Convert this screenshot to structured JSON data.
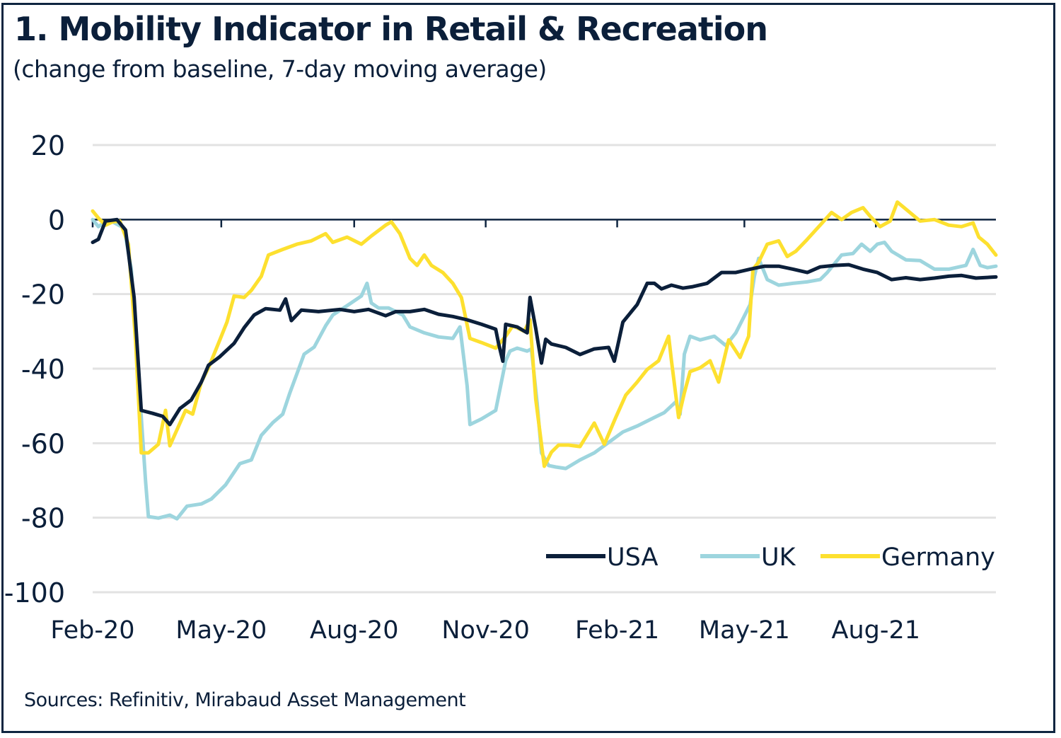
{
  "chart_data": {
    "type": "line",
    "title": "1. Mobility Indicator in Retail & Recreation",
    "subtitle": "(change from baseline, 7-day moving average)",
    "source": "Sources: Refinitiv, Mirabaud Asset Management",
    "xlabel": "",
    "ylabel": "",
    "x_unit": "days since 2020-02-15",
    "x_range_days": [
      0,
      632
    ],
    "ylim": [
      -100,
      20
    ],
    "yticks": [
      20,
      0,
      -20,
      -40,
      -60,
      -80,
      -100
    ],
    "ytick_labels": [
      "20",
      "0",
      "-20",
      "-40",
      "-60",
      "-80",
      "-100"
    ],
    "xticks": [
      {
        "label": "Feb-20",
        "day": 0
      },
      {
        "label": "May-20",
        "day": 90
      },
      {
        "label": "Aug-20",
        "day": 183
      },
      {
        "label": "Nov-20",
        "day": 275
      },
      {
        "label": "Feb-21",
        "day": 367
      },
      {
        "label": "May-21",
        "day": 456
      },
      {
        "label": "Aug-21",
        "day": 548
      }
    ],
    "grid": true,
    "legend_position": "bottom-right",
    "series": [
      {
        "name": "USA",
        "color": "#0b1f3a",
        "points": [
          [
            0,
            -6.1
          ],
          [
            4,
            -5.3
          ],
          [
            9,
            -0.4
          ],
          [
            17,
            0
          ],
          [
            23,
            -2.8
          ],
          [
            29,
            -20.9
          ],
          [
            34,
            -51.2
          ],
          [
            42,
            -52
          ],
          [
            49,
            -52.8
          ],
          [
            54,
            -55
          ],
          [
            61,
            -50.7
          ],
          [
            69,
            -48.4
          ],
          [
            76,
            -43.6
          ],
          [
            81,
            -39.1
          ],
          [
            89,
            -36.8
          ],
          [
            99,
            -33.2
          ],
          [
            106,
            -29
          ],
          [
            113,
            -25.6
          ],
          [
            121,
            -23.9
          ],
          [
            131,
            -24.3
          ],
          [
            135,
            -21.3
          ],
          [
            139,
            -27.1
          ],
          [
            146,
            -24.3
          ],
          [
            158,
            -24.7
          ],
          [
            173,
            -24.1
          ],
          [
            183,
            -24.7
          ],
          [
            193,
            -24.1
          ],
          [
            205,
            -25.8
          ],
          [
            212,
            -24.7
          ],
          [
            222,
            -24.7
          ],
          [
            232,
            -24.1
          ],
          [
            242,
            -25.4
          ],
          [
            252,
            -26
          ],
          [
            262,
            -26.9
          ],
          [
            272,
            -28.1
          ],
          [
            282,
            -29.4
          ],
          [
            284,
            -33.2
          ],
          [
            287,
            -38
          ],
          [
            289,
            -28.1
          ],
          [
            297,
            -28.8
          ],
          [
            304,
            -30.4
          ],
          [
            306,
            -20.9
          ],
          [
            310,
            -29.2
          ],
          [
            314,
            -38.5
          ],
          [
            317,
            -32.1
          ],
          [
            321,
            -33.4
          ],
          [
            331,
            -34.3
          ],
          [
            341,
            -36.2
          ],
          [
            351,
            -34.7
          ],
          [
            361,
            -34.3
          ],
          [
            365,
            -38
          ],
          [
            371,
            -27.5
          ],
          [
            381,
            -22.8
          ],
          [
            388,
            -17.1
          ],
          [
            393,
            -17.1
          ],
          [
            398,
            -18.6
          ],
          [
            405,
            -17.6
          ],
          [
            413,
            -18.4
          ],
          [
            420,
            -18
          ],
          [
            430,
            -17.1
          ],
          [
            440,
            -14.2
          ],
          [
            450,
            -14.2
          ],
          [
            460,
            -13.3
          ],
          [
            470,
            -12.5
          ],
          [
            480,
            -12.5
          ],
          [
            490,
            -13.3
          ],
          [
            500,
            -14.2
          ],
          [
            509,
            -12.7
          ],
          [
            519,
            -12.3
          ],
          [
            529,
            -12.1
          ],
          [
            539,
            -13.3
          ],
          [
            549,
            -14.2
          ],
          [
            559,
            -16.1
          ],
          [
            569,
            -15.6
          ],
          [
            579,
            -16.1
          ],
          [
            589,
            -15.7
          ],
          [
            599,
            -15.2
          ],
          [
            608,
            -15
          ],
          [
            618,
            -15.7
          ],
          [
            632,
            -15.4
          ]
        ]
      },
      {
        "name": "UK",
        "color": "#9dd5de",
        "points": [
          [
            0,
            0
          ],
          [
            4,
            -1.9
          ],
          [
            9,
            -0.6
          ],
          [
            14,
            -0.6
          ],
          [
            22,
            -2.3
          ],
          [
            27,
            -13.3
          ],
          [
            32,
            -41.7
          ],
          [
            37,
            -70.2
          ],
          [
            39,
            -79.7
          ],
          [
            46,
            -80.1
          ],
          [
            54,
            -79.3
          ],
          [
            59,
            -80.3
          ],
          [
            66,
            -76.9
          ],
          [
            76,
            -76.3
          ],
          [
            83,
            -75
          ],
          [
            93,
            -71.2
          ],
          [
            103,
            -65.5
          ],
          [
            111,
            -64.5
          ],
          [
            118,
            -57.9
          ],
          [
            126,
            -54.5
          ],
          [
            133,
            -52.2
          ],
          [
            138,
            -46.5
          ],
          [
            148,
            -36.1
          ],
          [
            155,
            -34.2
          ],
          [
            163,
            -28.5
          ],
          [
            168,
            -25.6
          ],
          [
            178,
            -23.1
          ],
          [
            188,
            -20.5
          ],
          [
            192,
            -17.1
          ],
          [
            195,
            -22.4
          ],
          [
            200,
            -23.7
          ],
          [
            207,
            -23.7
          ],
          [
            217,
            -25.6
          ],
          [
            222,
            -28.8
          ],
          [
            232,
            -30.4
          ],
          [
            242,
            -31.5
          ],
          [
            252,
            -31.9
          ],
          [
            257,
            -28.8
          ],
          [
            262,
            -44.6
          ],
          [
            264,
            -55
          ],
          [
            272,
            -53.5
          ],
          [
            282,
            -51.2
          ],
          [
            289,
            -37.9
          ],
          [
            292,
            -35.3
          ],
          [
            297,
            -34.5
          ],
          [
            304,
            -35.3
          ],
          [
            307,
            -34.7
          ],
          [
            311,
            -49.3
          ],
          [
            314,
            -62.6
          ],
          [
            319,
            -66
          ],
          [
            324,
            -66.4
          ],
          [
            331,
            -66.8
          ],
          [
            341,
            -64.5
          ],
          [
            351,
            -62.6
          ],
          [
            361,
            -59.8
          ],
          [
            371,
            -57
          ],
          [
            381,
            -55.4
          ],
          [
            393,
            -53.1
          ],
          [
            400,
            -51.8
          ],
          [
            408,
            -48.9
          ],
          [
            411,
            -52.2
          ],
          [
            414,
            -36.1
          ],
          [
            418,
            -31.3
          ],
          [
            425,
            -32.3
          ],
          [
            435,
            -31.3
          ],
          [
            443,
            -33.8
          ],
          [
            450,
            -30.4
          ],
          [
            460,
            -22.8
          ],
          [
            463,
            -15.2
          ],
          [
            466,
            -10.4
          ],
          [
            472,
            -16.1
          ],
          [
            480,
            -17.6
          ],
          [
            490,
            -17.1
          ],
          [
            500,
            -16.7
          ],
          [
            509,
            -16.1
          ],
          [
            514,
            -14.2
          ],
          [
            524,
            -9.5
          ],
          [
            532,
            -9.1
          ],
          [
            538,
            -6.6
          ],
          [
            544,
            -8.5
          ],
          [
            549,
            -6.6
          ],
          [
            554,
            -6.1
          ],
          [
            559,
            -8.5
          ],
          [
            569,
            -10.8
          ],
          [
            579,
            -11
          ],
          [
            589,
            -13.3
          ],
          [
            599,
            -13.3
          ],
          [
            611,
            -12.3
          ],
          [
            616,
            -8
          ],
          [
            621,
            -12.3
          ],
          [
            626,
            -12.9
          ],
          [
            632,
            -12.5
          ]
        ]
      },
      {
        "name": "Germany",
        "color": "#fde02f",
        "points": [
          [
            0,
            2.3
          ],
          [
            4,
            0.4
          ],
          [
            9,
            -1.5
          ],
          [
            14,
            -0.6
          ],
          [
            19,
            -0.4
          ],
          [
            25,
            -6.6
          ],
          [
            30,
            -32.3
          ],
          [
            34,
            -62.6
          ],
          [
            39,
            -62.6
          ],
          [
            46,
            -60.3
          ],
          [
            51,
            -51.2
          ],
          [
            54,
            -60.7
          ],
          [
            59,
            -56.4
          ],
          [
            65,
            -51.2
          ],
          [
            70,
            -52.2
          ],
          [
            76,
            -43.6
          ],
          [
            81,
            -39.8
          ],
          [
            89,
            -32.3
          ],
          [
            94,
            -27.5
          ],
          [
            99,
            -20.5
          ],
          [
            106,
            -20.9
          ],
          [
            111,
            -19
          ],
          [
            118,
            -15.2
          ],
          [
            123,
            -9.5
          ],
          [
            133,
            -8
          ],
          [
            143,
            -6.6
          ],
          [
            153,
            -5.7
          ],
          [
            163,
            -3.8
          ],
          [
            168,
            -6.1
          ],
          [
            178,
            -4.7
          ],
          [
            188,
            -6.6
          ],
          [
            195,
            -4.4
          ],
          [
            205,
            -1.5
          ],
          [
            209,
            -0.6
          ],
          [
            215,
            -3.8
          ],
          [
            222,
            -10.4
          ],
          [
            227,
            -12.3
          ],
          [
            232,
            -9.5
          ],
          [
            237,
            -12.3
          ],
          [
            245,
            -14.2
          ],
          [
            252,
            -17.1
          ],
          [
            258,
            -20.9
          ],
          [
            264,
            -31.9
          ],
          [
            272,
            -33
          ],
          [
            282,
            -34.5
          ],
          [
            289,
            -31.3
          ],
          [
            294,
            -28.5
          ],
          [
            302,
            -30
          ],
          [
            306,
            -26.9
          ],
          [
            310,
            -48.2
          ],
          [
            316,
            -66.2
          ],
          [
            321,
            -62.4
          ],
          [
            326,
            -60.5
          ],
          [
            333,
            -60.5
          ],
          [
            341,
            -60.9
          ],
          [
            351,
            -54.6
          ],
          [
            358,
            -60.3
          ],
          [
            366,
            -53.1
          ],
          [
            373,
            -47.1
          ],
          [
            381,
            -43.6
          ],
          [
            388,
            -40.2
          ],
          [
            396,
            -37.9
          ],
          [
            403,
            -31.3
          ],
          [
            405,
            -37.9
          ],
          [
            410,
            -53.1
          ],
          [
            414,
            -46.5
          ],
          [
            418,
            -40.8
          ],
          [
            425,
            -39.8
          ],
          [
            432,
            -37.9
          ],
          [
            438,
            -43.6
          ],
          [
            445,
            -32.3
          ],
          [
            453,
            -37
          ],
          [
            459,
            -31.3
          ],
          [
            462,
            -13.3
          ],
          [
            466,
            -11.4
          ],
          [
            472,
            -6.6
          ],
          [
            480,
            -5.7
          ],
          [
            486,
            -9.9
          ],
          [
            492,
            -8.5
          ],
          [
            499,
            -5.7
          ],
          [
            509,
            -1.5
          ],
          [
            517,
            1.9
          ],
          [
            524,
            0
          ],
          [
            531,
            1.9
          ],
          [
            539,
            3.2
          ],
          [
            544,
            0.9
          ],
          [
            551,
            -1.9
          ],
          [
            558,
            -0.4
          ],
          [
            563,
            4.7
          ],
          [
            569,
            2.8
          ],
          [
            579,
            -0.4
          ],
          [
            589,
            0
          ],
          [
            599,
            -1.5
          ],
          [
            608,
            -1.9
          ],
          [
            616,
            -0.9
          ],
          [
            620,
            -4.7
          ],
          [
            626,
            -6.6
          ],
          [
            632,
            -9.5
          ]
        ]
      }
    ]
  }
}
